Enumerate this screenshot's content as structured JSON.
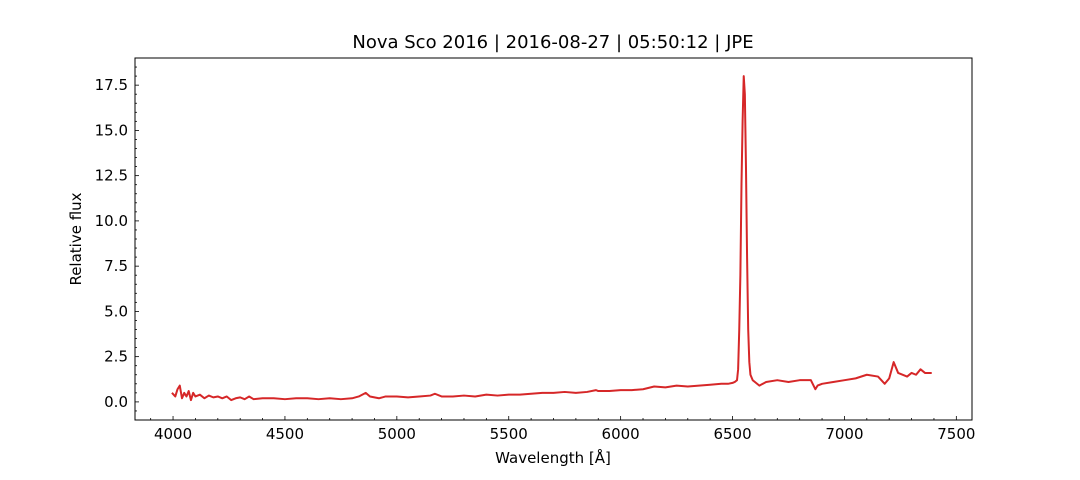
{
  "chart_data": {
    "type": "line",
    "title": "Nova Sco 2016 | 2016-08-27 | 05:50:12 | JPE",
    "xlabel": "Wavelength [Å]",
    "ylabel": "Relative flux",
    "xlim": [
      3830,
      7570
    ],
    "ylim": [
      -1.0,
      19.0
    ],
    "xticks": [
      4000,
      4500,
      5000,
      5500,
      6000,
      6500,
      7000,
      7500
    ],
    "xtick_labels": [
      "4000",
      "4500",
      "5000",
      "5500",
      "6000",
      "6500",
      "7000",
      "7500"
    ],
    "yticks": [
      0,
      2.5,
      5,
      7.5,
      10,
      12.5,
      15,
      17.5
    ],
    "ytick_labels": [
      "0.0",
      "2.5",
      "5.0",
      "7.5",
      "10.0",
      "12.5",
      "15.0",
      "17.5"
    ],
    "x_minor_step": 100,
    "y_minor_step": 0.5,
    "grid": false,
    "series": [
      {
        "color": "#d62728",
        "points": [
          [
            3995,
            0.5
          ],
          [
            4010,
            0.3
          ],
          [
            4020,
            0.7
          ],
          [
            4030,
            0.9
          ],
          [
            4040,
            0.2
          ],
          [
            4050,
            0.5
          ],
          [
            4060,
            0.3
          ],
          [
            4070,
            0.6
          ],
          [
            4080,
            0.1
          ],
          [
            4090,
            0.5
          ],
          [
            4100,
            0.3
          ],
          [
            4120,
            0.4
          ],
          [
            4140,
            0.2
          ],
          [
            4160,
            0.35
          ],
          [
            4180,
            0.25
          ],
          [
            4200,
            0.3
          ],
          [
            4220,
            0.2
          ],
          [
            4240,
            0.3
          ],
          [
            4260,
            0.1
          ],
          [
            4280,
            0.2
          ],
          [
            4300,
            0.25
          ],
          [
            4320,
            0.15
          ],
          [
            4340,
            0.3
          ],
          [
            4360,
            0.15
          ],
          [
            4400,
            0.2
          ],
          [
            4450,
            0.2
          ],
          [
            4500,
            0.15
          ],
          [
            4550,
            0.2
          ],
          [
            4600,
            0.2
          ],
          [
            4650,
            0.15
          ],
          [
            4700,
            0.2
          ],
          [
            4750,
            0.15
          ],
          [
            4800,
            0.2
          ],
          [
            4830,
            0.3
          ],
          [
            4861,
            0.5
          ],
          [
            4880,
            0.3
          ],
          [
            4920,
            0.2
          ],
          [
            4950,
            0.3
          ],
          [
            5000,
            0.3
          ],
          [
            5050,
            0.25
          ],
          [
            5100,
            0.3
          ],
          [
            5150,
            0.35
          ],
          [
            5170,
            0.45
          ],
          [
            5200,
            0.3
          ],
          [
            5250,
            0.3
          ],
          [
            5300,
            0.35
          ],
          [
            5350,
            0.3
          ],
          [
            5400,
            0.4
          ],
          [
            5450,
            0.35
          ],
          [
            5500,
            0.4
          ],
          [
            5550,
            0.4
          ],
          [
            5600,
            0.45
          ],
          [
            5650,
            0.5
          ],
          [
            5700,
            0.5
          ],
          [
            5750,
            0.55
          ],
          [
            5800,
            0.5
          ],
          [
            5850,
            0.55
          ],
          [
            5890,
            0.65
          ],
          [
            5900,
            0.6
          ],
          [
            5950,
            0.6
          ],
          [
            6000,
            0.65
          ],
          [
            6050,
            0.65
          ],
          [
            6100,
            0.7
          ],
          [
            6150,
            0.85
          ],
          [
            6200,
            0.8
          ],
          [
            6250,
            0.9
          ],
          [
            6300,
            0.85
          ],
          [
            6350,
            0.9
          ],
          [
            6400,
            0.95
          ],
          [
            6450,
            1.0
          ],
          [
            6480,
            1.0
          ],
          [
            6500,
            1.05
          ],
          [
            6510,
            1.1
          ],
          [
            6520,
            1.2
          ],
          [
            6525,
            1.8
          ],
          [
            6530,
            4.0
          ],
          [
            6535,
            7.0
          ],
          [
            6540,
            12.0
          ],
          [
            6545,
            15.5
          ],
          [
            6550,
            18.0
          ],
          [
            6555,
            17.0
          ],
          [
            6560,
            13.0
          ],
          [
            6565,
            8.0
          ],
          [
            6570,
            4.0
          ],
          [
            6575,
            2.2
          ],
          [
            6580,
            1.5
          ],
          [
            6590,
            1.2
          ],
          [
            6600,
            1.1
          ],
          [
            6620,
            0.9
          ],
          [
            6650,
            1.1
          ],
          [
            6700,
            1.2
          ],
          [
            6750,
            1.1
          ],
          [
            6800,
            1.2
          ],
          [
            6850,
            1.2
          ],
          [
            6870,
            0.7
          ],
          [
            6880,
            0.9
          ],
          [
            6900,
            1.0
          ],
          [
            6950,
            1.1
          ],
          [
            7000,
            1.2
          ],
          [
            7050,
            1.3
          ],
          [
            7100,
            1.5
          ],
          [
            7150,
            1.4
          ],
          [
            7180,
            1.0
          ],
          [
            7200,
            1.3
          ],
          [
            7220,
            2.2
          ],
          [
            7240,
            1.6
          ],
          [
            7280,
            1.4
          ],
          [
            7300,
            1.6
          ],
          [
            7320,
            1.5
          ],
          [
            7340,
            1.8
          ],
          [
            7360,
            1.6
          ],
          [
            7390,
            1.6
          ]
        ]
      }
    ]
  }
}
